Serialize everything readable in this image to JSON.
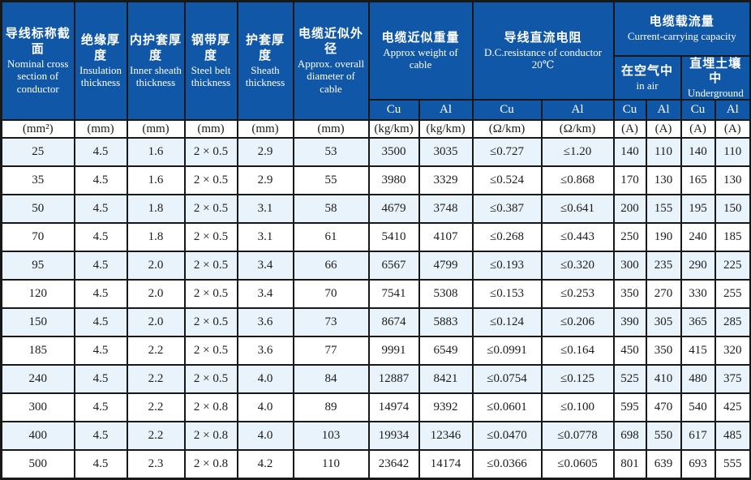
{
  "colors": {
    "header_bg": "#1057a7",
    "alt_row_bg": "#e9f3fb",
    "border": "#181818",
    "header_text": "#ffffff",
    "body_text": "#1c1c1c"
  },
  "table": {
    "header": {
      "columns": [
        {
          "zh": "导线标称截面",
          "en": "Nominal cross section of conductor"
        },
        {
          "zh": "绝缘厚度",
          "en": "Insulation thickness"
        },
        {
          "zh": "内护套厚度",
          "en": "Inner sheath thickness"
        },
        {
          "zh": "钢带厚度",
          "en": "Steel belt thickness"
        },
        {
          "zh": "护套厚度",
          "en": "Sheath thickness"
        },
        {
          "zh": "电缆近似外径",
          "en": "Approx. overall diameter of cable"
        }
      ],
      "groups": {
        "weight": {
          "zh": "电缆近似重量",
          "en": "Approx weight of cable"
        },
        "resistance": {
          "zh": "导线直流电阻",
          "en": "D.C.resistance of conductor",
          "line2": "20℃"
        },
        "capacity": {
          "zh": "电缆载流量",
          "en": "Current-carrying capacity"
        },
        "in_air": {
          "zh": "在空气中",
          "en": "in air"
        },
        "underground": {
          "zh": "直埋土壤中",
          "en": "Underground"
        }
      },
      "material_row": [
        "Cu",
        "Al",
        "Cu",
        "Al",
        "Cu",
        "Al",
        "Cu",
        "Al"
      ],
      "units_row": [
        "(mm²)",
        "(mm)",
        "(mm)",
        "(mm)",
        "(mm)",
        "(mm)",
        "(kg/km)",
        "(kg/km)",
        "(Ω/km)",
        "(Ω/km)",
        "(A)",
        "(A)",
        "(A)",
        "(A)"
      ]
    },
    "rows": [
      [
        "25",
        "4.5",
        "1.6",
        "2 × 0.5",
        "2.9",
        "53",
        "3500",
        "3035",
        "≤0.727",
        "≤1.20",
        "140",
        "110",
        "140",
        "110"
      ],
      [
        "35",
        "4.5",
        "1.6",
        "2 × 0.5",
        "2.9",
        "55",
        "3980",
        "3329",
        "≤0.524",
        "≤0.868",
        "170",
        "130",
        "165",
        "130"
      ],
      [
        "50",
        "4.5",
        "1.8",
        "2 × 0.5",
        "3.1",
        "58",
        "4679",
        "3748",
        "≤0.387",
        "≤0.641",
        "200",
        "155",
        "195",
        "150"
      ],
      [
        "70",
        "4.5",
        "1.8",
        "2 × 0.5",
        "3.1",
        "61",
        "5410",
        "4107",
        "≤0.268",
        "≤0.443",
        "250",
        "190",
        "240",
        "185"
      ],
      [
        "95",
        "4.5",
        "2.0",
        "2 × 0.5",
        "3.4",
        "66",
        "6567",
        "4799",
        "≤0.193",
        "≤0.320",
        "300",
        "235",
        "290",
        "225"
      ],
      [
        "120",
        "4.5",
        "2.0",
        "2 × 0.5",
        "3.4",
        "70",
        "7541",
        "5308",
        "≤0.153",
        "≤0.253",
        "350",
        "270",
        "330",
        "255"
      ],
      [
        "150",
        "4.5",
        "2.0",
        "2 × 0.5",
        "3.6",
        "73",
        "8674",
        "5883",
        "≤0.124",
        "≤0.206",
        "390",
        "305",
        "365",
        "285"
      ],
      [
        "185",
        "4.5",
        "2.2",
        "2 × 0.5",
        "3.6",
        "77",
        "9991",
        "6549",
        "≤0.0991",
        "≤0.164",
        "450",
        "350",
        "415",
        "320"
      ],
      [
        "240",
        "4.5",
        "2.2",
        "2 × 0.5",
        "4.0",
        "84",
        "12887",
        "8421",
        "≤0.0754",
        "≤0.125",
        "525",
        "410",
        "480",
        "375"
      ],
      [
        "300",
        "4.5",
        "2.2",
        "2 × 0.8",
        "4.0",
        "89",
        "14974",
        "9392",
        "≤0.0601",
        "≤0.100",
        "595",
        "470",
        "540",
        "425"
      ],
      [
        "400",
        "4.5",
        "2.2",
        "2 × 0.8",
        "4.0",
        "103",
        "19934",
        "12346",
        "≤0.0470",
        "≤0.0778",
        "698",
        "550",
        "617",
        "485"
      ],
      [
        "500",
        "4.5",
        "2.3",
        "2 × 0.8",
        "4.2",
        "110",
        "23642",
        "14174",
        "≤0.0366",
        "≤0.0605",
        "801",
        "639",
        "693",
        "555"
      ]
    ]
  }
}
